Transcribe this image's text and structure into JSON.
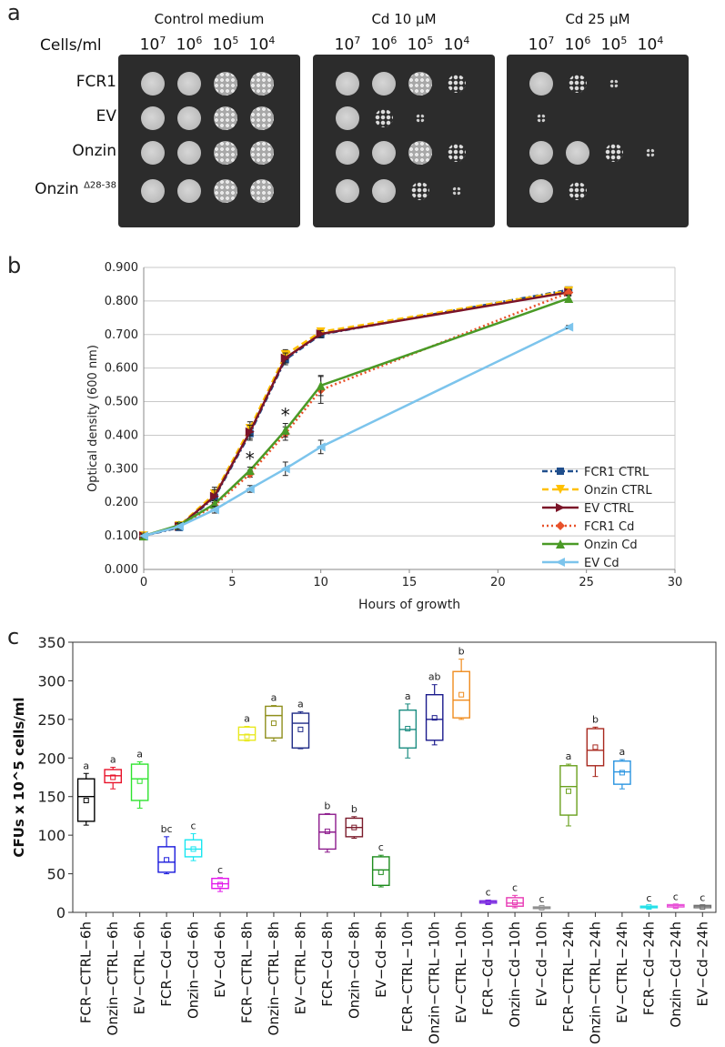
{
  "panel_a": {
    "letter": "a",
    "cells_label": "Cells/ml",
    "concentrations": [
      {
        "base": "10",
        "exp": "7"
      },
      {
        "base": "10",
        "exp": "6"
      },
      {
        "base": "10",
        "exp": "5"
      },
      {
        "base": "10",
        "exp": "4"
      }
    ],
    "plates": [
      {
        "title": "Control medium",
        "spots": [
          [
            3,
            3,
            3,
            3
          ],
          [
            3,
            3,
            3,
            3
          ],
          [
            3,
            3,
            3,
            3
          ],
          [
            3,
            3,
            3,
            3
          ]
        ]
      },
      {
        "title": "Cd 10 µM",
        "spots": [
          [
            3,
            3,
            3,
            2
          ],
          [
            3,
            2,
            1,
            0
          ],
          [
            3,
            3,
            3,
            2
          ],
          [
            3,
            3,
            2,
            1
          ]
        ]
      },
      {
        "title": "Cd 25 µM",
        "spots": [
          [
            3,
            2,
            1,
            0
          ],
          [
            1,
            0,
            0,
            0
          ],
          [
            3,
            3,
            2,
            1
          ],
          [
            3,
            2,
            0,
            0
          ]
        ]
      }
    ],
    "strains": [
      {
        "name": "FCR1",
        "sup": ""
      },
      {
        "name": "EV",
        "sup": ""
      },
      {
        "name": "Onzin",
        "sup": ""
      },
      {
        "name": "Onzin ",
        "sup": "Δ28-38"
      }
    ]
  },
  "panel_b": {
    "letter": "b"
  },
  "panel_c": {
    "letter": "c"
  },
  "colors": {
    "fcr1_ctrl": "#1f4e8c",
    "onzin_ctrl": "#ffc000",
    "ev_ctrl": "#7b1428",
    "fcr1_cd": "#e8512a",
    "onzin_cd": "#4a9a26",
    "ev_cd": "#7cc4ec"
  },
  "chart_data": [
    {
      "type": "line",
      "xlabel": "Hours of growth",
      "ylabel": "Optical density (600 nm)",
      "xlim": [
        0,
        30
      ],
      "ylim": [
        0,
        0.9
      ],
      "xticks": [
        "0",
        "5",
        "10",
        "15",
        "20",
        "25",
        "30"
      ],
      "yticks": [
        "0.000",
        "0.100",
        "0.200",
        "0.300",
        "0.400",
        "0.500",
        "0.600",
        "0.700",
        "0.800",
        "0.900"
      ],
      "grid": "horizontal",
      "legend_position": "bottom-right",
      "series": [
        {
          "name": "FCR1 CTRL",
          "color": "#1f4e8c",
          "dash": "dashdot",
          "marker": "square",
          "x": [
            0,
            2,
            4,
            6,
            8,
            10,
            24
          ],
          "y": [
            0.1,
            0.125,
            0.215,
            0.405,
            0.625,
            0.7,
            0.833
          ],
          "err": [
            0.005,
            0.008,
            0.02,
            0.02,
            0.015,
            0.01,
            0.008
          ]
        },
        {
          "name": "Onzin CTRL",
          "color": "#ffc000",
          "dash": "dashed",
          "marker": "triangle-down",
          "x": [
            0,
            2,
            4,
            6,
            8,
            10,
            24
          ],
          "y": [
            0.1,
            0.13,
            0.225,
            0.42,
            0.64,
            0.708,
            0.83
          ],
          "err": [
            0.005,
            0.008,
            0.02,
            0.02,
            0.015,
            0.01,
            0.008
          ]
        },
        {
          "name": "EV CTRL",
          "color": "#7b1428",
          "dash": "solid",
          "marker": "triangle-right",
          "x": [
            0,
            2,
            4,
            6,
            8,
            10,
            24
          ],
          "y": [
            0.1,
            0.128,
            0.218,
            0.41,
            0.63,
            0.702,
            0.826
          ],
          "err": [
            0.005,
            0.008,
            0.02,
            0.02,
            0.015,
            0.01,
            0.008
          ]
        },
        {
          "name": "FCR1 Cd",
          "color": "#e8512a",
          "dash": "dotted",
          "marker": "diamond",
          "x": [
            0,
            2,
            4,
            6,
            8,
            10,
            24
          ],
          "y": [
            0.1,
            0.13,
            0.19,
            0.285,
            0.405,
            0.535,
            0.825
          ],
          "err": [
            0.005,
            0.008,
            0.01,
            0.01,
            0.02,
            0.04,
            0.01
          ]
        },
        {
          "name": "Onzin Cd",
          "color": "#4a9a26",
          "dash": "solid",
          "marker": "triangle-up",
          "x": [
            0,
            2,
            4,
            6,
            8,
            10,
            24
          ],
          "y": [
            0.1,
            0.132,
            0.195,
            0.295,
            0.415,
            0.548,
            0.808
          ],
          "err": [
            0.005,
            0.008,
            0.01,
            0.01,
            0.02,
            0.03,
            0.01
          ]
        },
        {
          "name": "EV Cd",
          "color": "#7cc4ec",
          "dash": "solid",
          "marker": "triangle-left",
          "x": [
            0,
            2,
            4,
            6,
            8,
            10,
            24
          ],
          "y": [
            0.1,
            0.128,
            0.178,
            0.24,
            0.3,
            0.365,
            0.722
          ],
          "err": [
            0.005,
            0.008,
            0.01,
            0.01,
            0.02,
            0.02,
            0.005
          ]
        }
      ],
      "annotations": [
        {
          "text": "*",
          "x": 6,
          "y": 0.31
        },
        {
          "text": "*",
          "x": 8,
          "y": 0.44
        }
      ]
    },
    {
      "type": "box",
      "ylabel": "CFUs x 10^5 cells/ml",
      "ylim": [
        0,
        350
      ],
      "yticks": [
        "0",
        "50",
        "100",
        "150",
        "200",
        "250",
        "300",
        "350"
      ],
      "categories": [
        "FCR−CTRL−6h",
        "Onzin−CTRL−6h",
        "EV−CTRL−6h",
        "FCR−Cd−6h",
        "Onzin−Cd−6h",
        "EV−Cd−6h",
        "FCR−CTRL−8h",
        "Onzin−CTRL−8h",
        "EV−CTRL−8h",
        "FCR−Cd−8h",
        "Onzin−Cd−8h",
        "EV−Cd−8h",
        "FCR−CTRL−10h",
        "Onzin−CTRL−10h",
        "EV−CTRL−10h",
        "FCR−Cd−10h",
        "Onzin−Cd−10h",
        "EV−Cd−10h",
        "FCR−CTRL−24h",
        "Onzin−CTRL−24h",
        "EV−CTRL−24h",
        "FCR−Cd−24h",
        "Onzin−Cd−24h",
        "EV−Cd−24h"
      ],
      "boxes": [
        {
          "min": 113,
          "q1": 118,
          "median": 150,
          "q3": 173,
          "max": 180,
          "mean": 145,
          "label": "a",
          "color": "#000000"
        },
        {
          "min": 160,
          "q1": 168,
          "median": 177,
          "q3": 185,
          "max": 188,
          "mean": 175,
          "label": "a",
          "color": "#e8132a"
        },
        {
          "min": 135,
          "q1": 145,
          "median": 173,
          "q3": 192,
          "max": 195,
          "mean": 170,
          "label": "a",
          "color": "#2ee32e"
        },
        {
          "min": 50,
          "q1": 52,
          "median": 65,
          "q3": 85,
          "max": 98,
          "mean": 68,
          "label": "bc",
          "color": "#1a1adc"
        },
        {
          "min": 67,
          "q1": 72,
          "median": 82,
          "q3": 94,
          "max": 102,
          "mean": 82,
          "label": "c",
          "color": "#18e6f0"
        },
        {
          "min": 27,
          "q1": 31,
          "median": 37,
          "q3": 44,
          "max": 45,
          "mean": 36,
          "label": "c",
          "color": "#e218ea"
        },
        {
          "min": 222,
          "q1": 223,
          "median": 230,
          "q3": 240,
          "max": 241,
          "mean": 228,
          "label": "a",
          "color": "#e8e81e"
        },
        {
          "min": 222,
          "q1": 226,
          "median": 255,
          "q3": 267,
          "max": 268,
          "mean": 245,
          "label": "a",
          "color": "#8f8f1c"
        },
        {
          "min": 212,
          "q1": 213,
          "median": 245,
          "q3": 258,
          "max": 260,
          "mean": 237,
          "label": "a",
          "color": "#1e2a86"
        },
        {
          "min": 78,
          "q1": 82,
          "median": 104,
          "q3": 127,
          "max": 128,
          "mean": 105,
          "label": "b",
          "color": "#8c1a8c"
        },
        {
          "min": 96,
          "q1": 98,
          "median": 110,
          "q3": 122,
          "max": 124,
          "mean": 110,
          "label": "b",
          "color": "#7a1a2a"
        },
        {
          "min": 33,
          "q1": 35,
          "median": 55,
          "q3": 72,
          "max": 74,
          "mean": 52,
          "label": "c",
          "color": "#1e8c1e"
        },
        {
          "min": 200,
          "q1": 213,
          "median": 237,
          "q3": 262,
          "max": 270,
          "mean": 238,
          "label": "a",
          "color": "#1a8c80"
        },
        {
          "min": 217,
          "q1": 223,
          "median": 250,
          "q3": 282,
          "max": 295,
          "mean": 252,
          "label": "ab",
          "color": "#1a1a8c"
        },
        {
          "min": 250,
          "q1": 252,
          "median": 275,
          "q3": 312,
          "max": 328,
          "mean": 282,
          "label": "b",
          "color": "#f08c1e"
        },
        {
          "min": 11,
          "q1": 12,
          "median": 14,
          "q3": 15,
          "max": 16,
          "mean": 13,
          "label": "c",
          "color": "#7a2ae0"
        },
        {
          "min": 6,
          "q1": 8,
          "median": 12,
          "q3": 19,
          "max": 22,
          "mean": 13,
          "label": "c",
          "color": "#e83ab4"
        },
        {
          "min": 5,
          "q1": 5,
          "median": 6,
          "q3": 7,
          "max": 7,
          "mean": 6,
          "label": "c",
          "color": "#909090"
        },
        {
          "min": 112,
          "q1": 126,
          "median": 163,
          "q3": 190,
          "max": 192,
          "mean": 157,
          "label": "a",
          "color": "#6aa01e"
        },
        {
          "min": 176,
          "q1": 190,
          "median": 210,
          "q3": 238,
          "max": 240,
          "mean": 214,
          "label": "b",
          "color": "#a8281e"
        },
        {
          "min": 160,
          "q1": 166,
          "median": 182,
          "q3": 196,
          "max": 198,
          "mean": 181,
          "label": "a",
          "color": "#2a94e0"
        },
        {
          "min": 5,
          "q1": 6,
          "median": 7,
          "q3": 8,
          "max": 8,
          "mean": 7,
          "label": "c",
          "color": "#26e0e8"
        },
        {
          "min": 6,
          "q1": 7,
          "median": 9,
          "q3": 10,
          "max": 10,
          "mean": 8,
          "label": "c",
          "color": "#e854d8"
        },
        {
          "min": 6,
          "q1": 6,
          "median": 8,
          "q3": 9,
          "max": 9,
          "mean": 7,
          "label": "c",
          "color": "#707070"
        }
      ]
    }
  ]
}
